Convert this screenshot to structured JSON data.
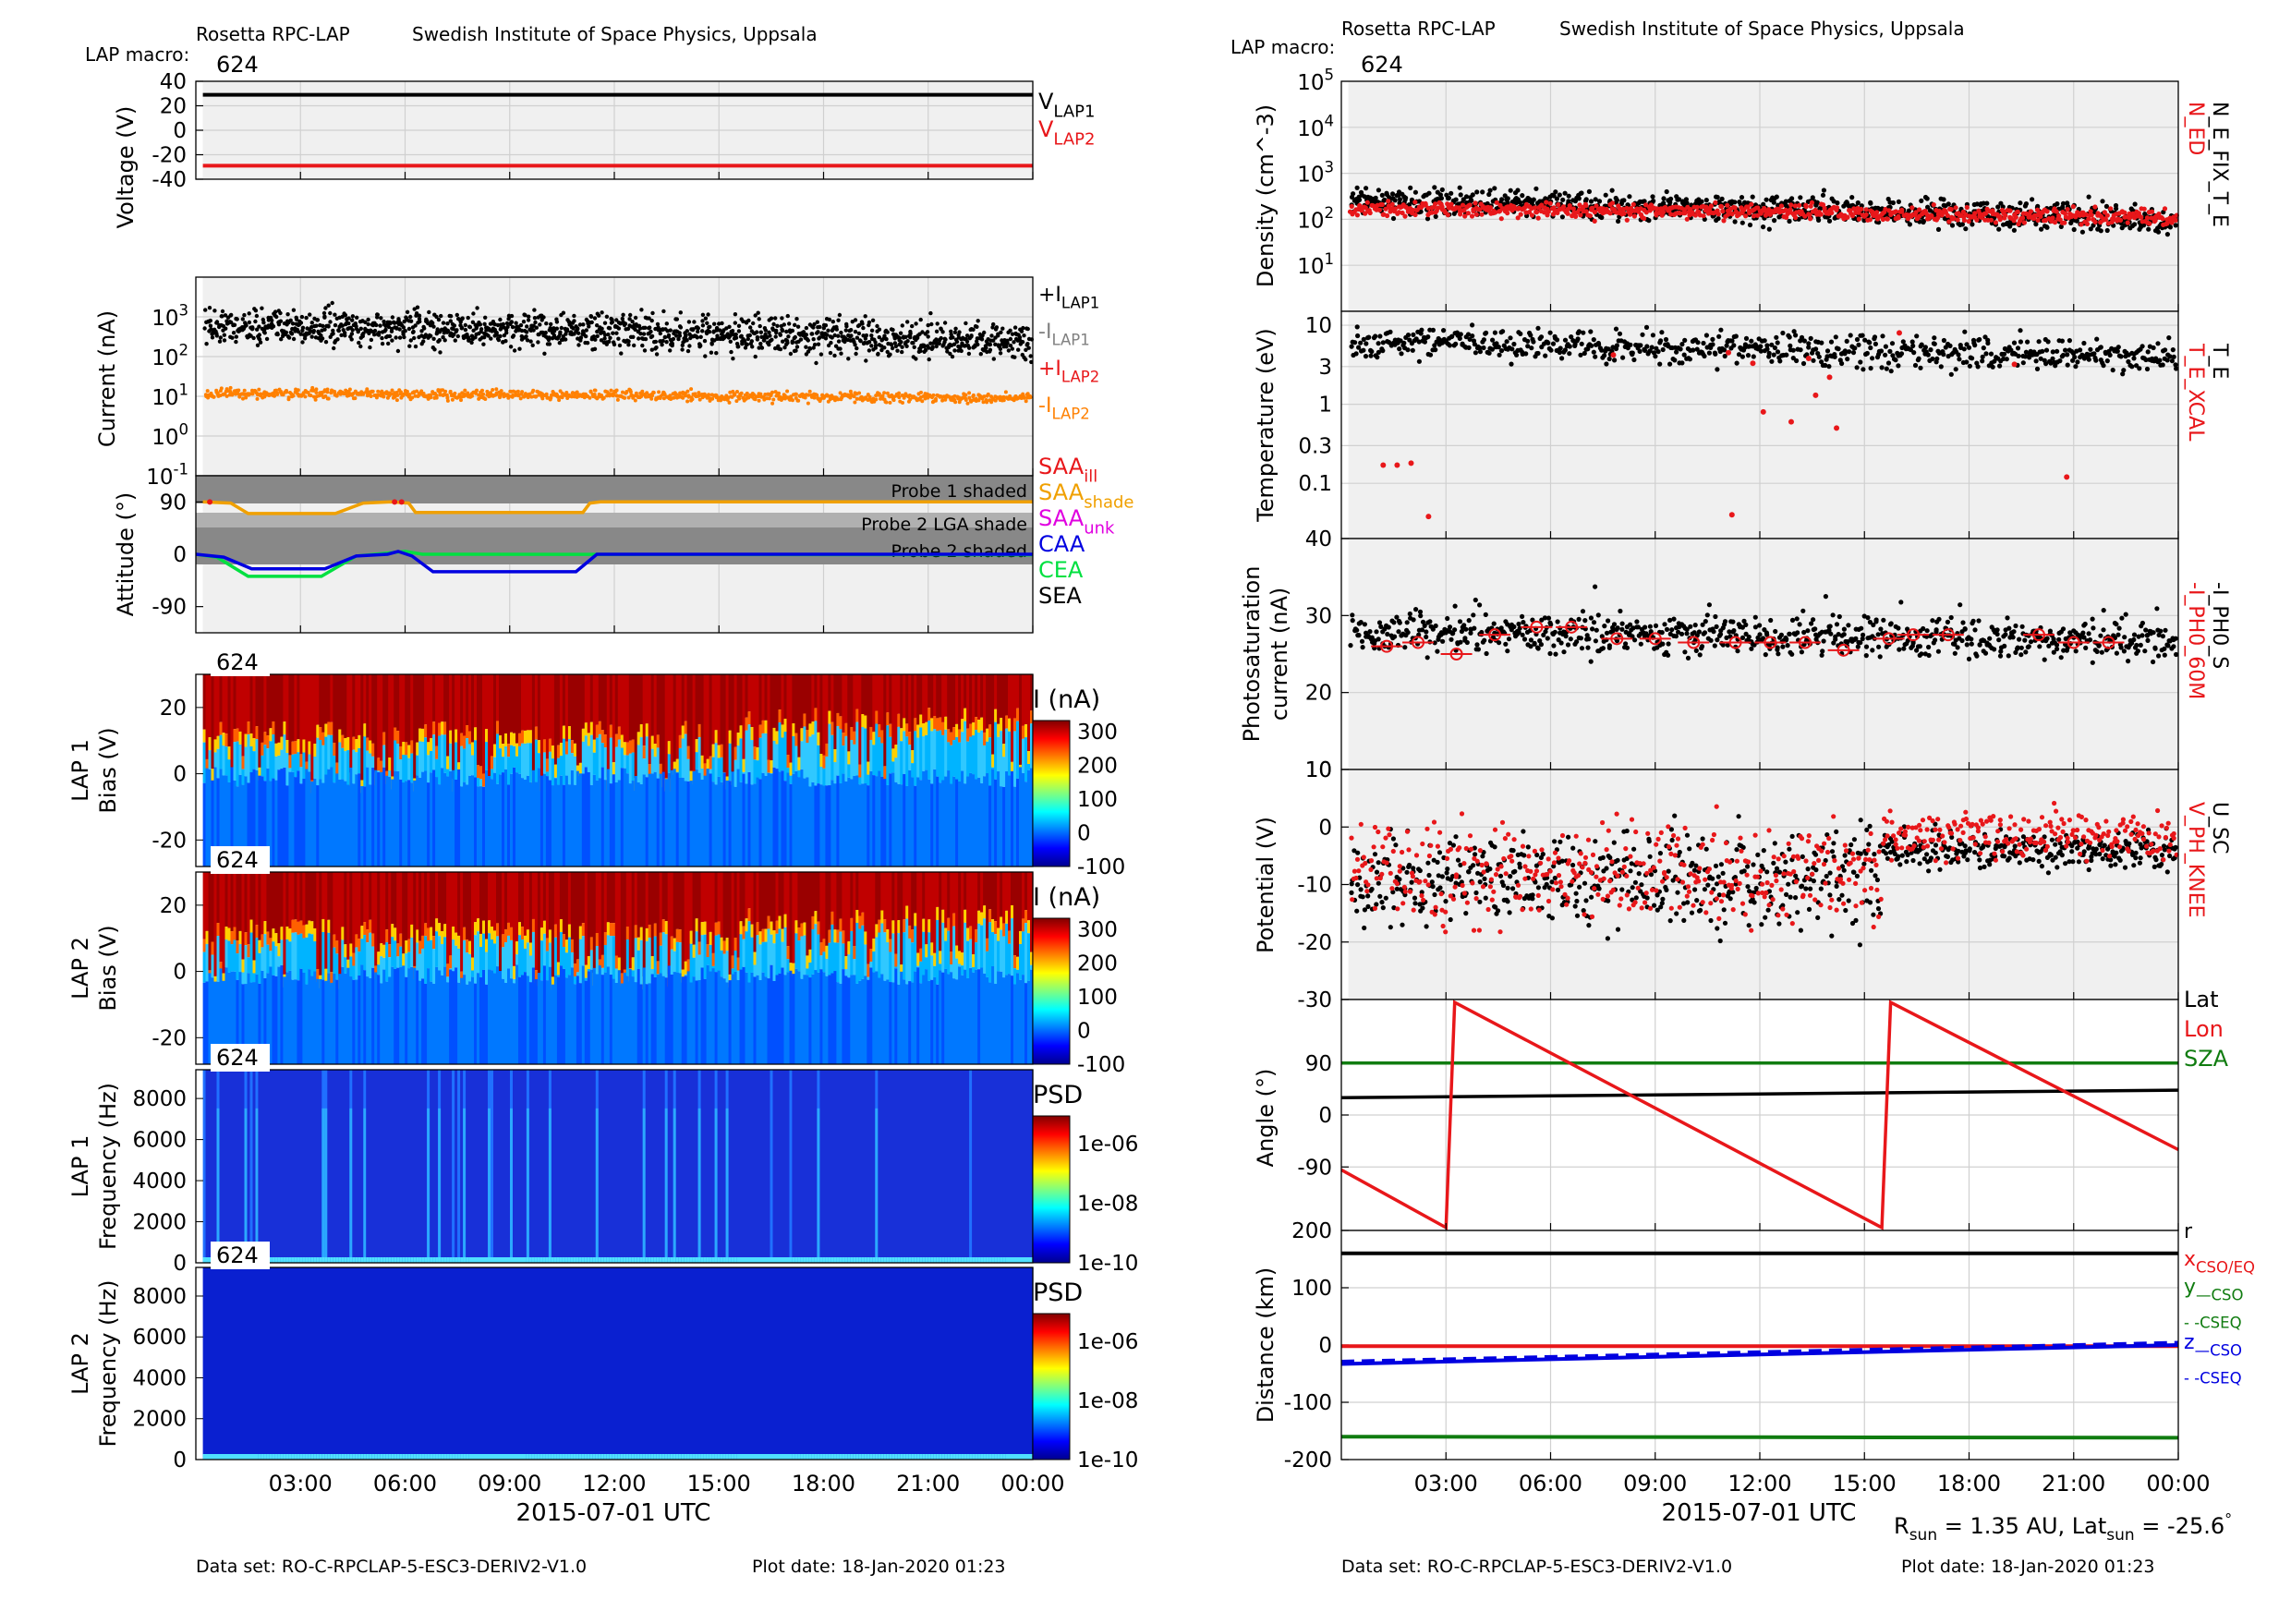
{
  "header": {
    "instrument": "Rosetta RPC-LAP",
    "institute": "Swedish Institute of Space Physics, Uppsala",
    "macro_label": "LAP macro:",
    "macro_value": "624"
  },
  "footer": {
    "dataset": "Data set: RO-C-RPCLAP-5-ESC3-DERIV2-V1.0",
    "plot_date": "Plot date: 18-Jan-2020 01:23",
    "sun_info_parts": [
      "R",
      "sun",
      " = 1.35 AU, Lat",
      "sun",
      " = -25.6",
      "°"
    ]
  },
  "time_axis": {
    "label": "2015-07-01 UTC",
    "ticks": [
      "03:00",
      "06:00",
      "09:00",
      "12:00",
      "15:00",
      "18:00",
      "21:00",
      "00:00"
    ],
    "range_hours": [
      0,
      24
    ]
  },
  "colors": {
    "panel_bg": "#f0f0f0",
    "black": "#000000",
    "red": "#e8171a",
    "orange": "#ff8000",
    "grey": "#808080",
    "gold": "#f0a000",
    "magenta": "#e000e0",
    "blue": "#0000e0",
    "green": "#00e040",
    "dark_green": "#107c10",
    "shade_dark": "#555555",
    "shade_mid": "#888888"
  },
  "chart_data": [
    {
      "id": "voltage",
      "type": "line",
      "ylabel": "Voltage (V)",
      "yticks": [
        40,
        20,
        0,
        -20,
        -40
      ],
      "ylim": [
        -40,
        40
      ],
      "series": [
        {
          "name": "V_LAP1",
          "values": [
            29,
            29
          ]
        },
        {
          "name": "V_LAP2",
          "values": [
            -29,
            -29
          ]
        }
      ],
      "legend": [
        {
          "main": "V",
          "sub": "LAP1",
          "color": "#000000"
        },
        {
          "main": "V",
          "sub": "LAP2",
          "color": "#e8171a"
        }
      ]
    },
    {
      "id": "current",
      "type": "scatter",
      "yscale": "log",
      "ylabel": "Current (nA)",
      "ylim": [
        0.1,
        10000
      ],
      "yticks": [
        {
          "m": "10",
          "e": "3"
        },
        {
          "m": "10",
          "e": "2"
        },
        {
          "m": "10",
          "e": "1"
        },
        {
          "m": "10",
          "e": "0"
        },
        {
          "m": "10",
          "e": "-1"
        }
      ],
      "series": [
        {
          "name": "+I_LAP1",
          "level_start": 600,
          "level_end": 220
        },
        {
          "name": "-I_LAP2",
          "level_start": 12,
          "level_end": 9
        }
      ],
      "legend": [
        {
          "main": "+I",
          "sub": "LAP1",
          "color": "#000000"
        },
        {
          "main": "-I",
          "sub": "LAP1",
          "color": "#808080"
        },
        {
          "main": "+I",
          "sub": "LAP2",
          "color": "#e8171a"
        },
        {
          "main": "-I",
          "sub": "LAP2",
          "color": "#ff8000"
        }
      ]
    },
    {
      "id": "attitude",
      "type": "line",
      "ylabel": "Attitude (°)",
      "yticks": [
        90,
        0,
        -90
      ],
      "ylim": [
        -135,
        135
      ],
      "shade_labels": [
        "Probe 1 shaded",
        "Probe 2 LGA shade",
        "Probe 2 shaded"
      ],
      "series": [
        {
          "name": "SAA",
          "points": [
            [
              0.2,
              90
            ],
            [
              1.0,
              88
            ],
            [
              1.5,
              70
            ],
            [
              4.0,
              70
            ],
            [
              4.8,
              88
            ],
            [
              5.6,
              90
            ],
            [
              6.1,
              88
            ],
            [
              6.3,
              72
            ],
            [
              11.1,
              72
            ],
            [
              11.3,
              88
            ],
            [
              11.6,
              90
            ],
            [
              24,
              90
            ]
          ]
        },
        {
          "name": "CAA",
          "points": [
            [
              0,
              0
            ],
            [
              0.8,
              -5
            ],
            [
              1.6,
              -25
            ],
            [
              3.7,
              -25
            ],
            [
              4.6,
              -3
            ],
            [
              5.5,
              0
            ],
            [
              5.8,
              5
            ],
            [
              6.2,
              -3
            ],
            [
              6.8,
              -30
            ],
            [
              10.9,
              -30
            ],
            [
              11.5,
              0
            ],
            [
              24,
              0
            ]
          ]
        },
        {
          "name": "CEA",
          "points": [
            [
              0,
              0
            ],
            [
              0.6,
              -5
            ],
            [
              1.5,
              -38
            ],
            [
              3.6,
              -38
            ],
            [
              4.6,
              -3
            ],
            [
              6.0,
              5
            ],
            [
              6.5,
              0
            ],
            [
              24,
              -1
            ]
          ]
        }
      ],
      "legend": [
        {
          "main": "SAA",
          "sub": "ill",
          "color": "#e8171a"
        },
        {
          "main": "SAA",
          "sub": "shade",
          "color": "#f0a000"
        },
        {
          "main": "SAA",
          "sub": "unk",
          "color": "#e000e0"
        },
        {
          "main": "CAA",
          "sub": "",
          "color": "#0000e0"
        },
        {
          "main": "CEA",
          "sub": "",
          "color": "#00e040"
        },
        {
          "main": "SEA",
          "sub": "",
          "color": "#000000"
        }
      ]
    },
    {
      "id": "lap1_sweep",
      "type": "heatmap",
      "ylabel": [
        "LAP 1",
        "Bias (V)"
      ],
      "yticks": [
        20,
        0,
        -20
      ],
      "ylim": [
        -28,
        30
      ],
      "macro": "624",
      "colorbar": {
        "title": "I (nA)",
        "ticks": [
          "300",
          "200",
          "100",
          "0",
          "-100"
        ],
        "range": [
          -100,
          350
        ]
      }
    },
    {
      "id": "lap2_sweep",
      "type": "heatmap",
      "ylabel": [
        "LAP 2",
        "Bias (V)"
      ],
      "yticks": [
        20,
        0,
        -20
      ],
      "ylim": [
        -28,
        30
      ],
      "macro": "624",
      "colorbar": {
        "title": "I (nA)",
        "ticks": [
          "300",
          "200",
          "100",
          "0",
          "-100"
        ],
        "range": [
          -100,
          350
        ]
      }
    },
    {
      "id": "lap1_psd",
      "type": "heatmap",
      "ylabel": [
        "LAP 1",
        "Frequency (Hz)"
      ],
      "yticks": [
        8000,
        6000,
        4000,
        2000,
        0
      ],
      "ylim": [
        0,
        9400
      ],
      "macro": "624",
      "colorbar": {
        "title": "PSD",
        "ticks": [
          "1e-06",
          "1e-08",
          "1e-10"
        ]
      }
    },
    {
      "id": "lap2_psd",
      "type": "heatmap",
      "ylabel": [
        "LAP 2",
        "Frequency (Hz)"
      ],
      "yticks": [
        8000,
        6000,
        4000,
        2000,
        0
      ],
      "ylim": [
        0,
        9400
      ],
      "macro": "624",
      "colorbar": {
        "title": "PSD",
        "ticks": [
          "1e-06",
          "1e-08",
          "1e-10"
        ]
      }
    },
    {
      "id": "density",
      "type": "scatter",
      "yscale": "log",
      "ylabel": "Density (cm^-3)",
      "ylim": [
        1,
        100000
      ],
      "yticks": [
        {
          "m": "10",
          "e": "5"
        },
        {
          "m": "10",
          "e": "4"
        },
        {
          "m": "10",
          "e": "3"
        },
        {
          "m": "10",
          "e": "2"
        },
        {
          "m": "10",
          "e": "1"
        }
      ],
      "series": [
        {
          "name": "N_E_FIX_T_E",
          "level_start": 250,
          "level_end": 90
        },
        {
          "name": "N_ED",
          "level_start": 180,
          "level_end": 110
        }
      ],
      "right_labels": [
        {
          "text": "N_ED",
          "color": "#e8171a"
        },
        {
          "text": "N_E_FIX_T_E",
          "color": "#000000"
        }
      ]
    },
    {
      "id": "temperature",
      "type": "scatter",
      "yscale": "log",
      "ylabel": "Temperature (eV)",
      "ylim": [
        0.02,
        15
      ],
      "yticks": [
        "10",
        "3",
        "1",
        "0.3",
        "0.1"
      ],
      "ytick_values": [
        10,
        3,
        1,
        0.3,
        0.1
      ],
      "series": [
        {
          "name": "T_E",
          "level_start": 6,
          "level_end": 4
        },
        {
          "name": "T_E_XCAL",
          "points": [
            [
              1.2,
              0.17
            ],
            [
              1.6,
              0.17
            ],
            [
              2.0,
              0.18
            ],
            [
              2.5,
              0.038
            ],
            [
              7.8,
              4.2
            ],
            [
              11.1,
              4.5
            ],
            [
              11.2,
              0.04
            ],
            [
              11.8,
              3.3
            ],
            [
              12.1,
              0.8
            ],
            [
              12.9,
              0.6
            ],
            [
              13.4,
              3.8
            ],
            [
              13.6,
              1.3
            ],
            [
              14.0,
              2.2
            ],
            [
              14.2,
              0.5
            ],
            [
              16.0,
              8
            ],
            [
              19.3,
              3.2
            ],
            [
              20.8,
              0.12
            ]
          ]
        }
      ],
      "right_labels": [
        {
          "text": "T_E_XCAL",
          "color": "#e8171a"
        },
        {
          "text": "T_E",
          "color": "#000000"
        }
      ]
    },
    {
      "id": "photosaturation",
      "type": "scatter",
      "ylabel": [
        "Photosaturation",
        "current (nA)"
      ],
      "yticks": [
        40,
        30,
        20,
        10
      ],
      "ylim": [
        10,
        40
      ],
      "series": [
        {
          "name": "-I_PH0_S",
          "level_start": 28,
          "level_end": 26.5
        },
        {
          "name": "-I_PH0_60M",
          "points": [
            [
              1.3,
              26
            ],
            [
              2.2,
              26.5
            ],
            [
              3.3,
              25
            ],
            [
              4.4,
              27.5
            ],
            [
              5.6,
              28.5
            ],
            [
              6.6,
              28.5
            ],
            [
              7.9,
              27
            ],
            [
              9.0,
              27
            ],
            [
              10.1,
              26.5
            ],
            [
              11.3,
              26.5
            ],
            [
              12.3,
              26.5
            ],
            [
              13.3,
              26.5
            ],
            [
              14.4,
              25.5
            ],
            [
              15.7,
              27
            ],
            [
              16.4,
              27.5
            ],
            [
              17.4,
              27.5
            ],
            [
              20.0,
              27.5
            ],
            [
              21.0,
              26.5
            ],
            [
              22.0,
              26.5
            ]
          ]
        }
      ],
      "right_labels": [
        {
          "text": "-I_PH0_60M",
          "color": "#e8171a"
        },
        {
          "text": "-I_PH0_S",
          "color": "#000000"
        }
      ]
    },
    {
      "id": "potential",
      "type": "scatter",
      "ylabel": "Potential (V)",
      "yticks": [
        10,
        0,
        -10,
        -20,
        -30
      ],
      "ylim": [
        -30,
        10
      ],
      "series": [
        {
          "name": "U_SC",
          "level_start": -9,
          "level_end": -3
        },
        {
          "name": "V_PH_KNEE",
          "level_start": -8,
          "level_end": -1
        }
      ],
      "right_labels": [
        {
          "text": "V_PH_KNEE",
          "color": "#e8171a"
        },
        {
          "text": "U_SC",
          "color": "#000000"
        }
      ]
    },
    {
      "id": "angle",
      "type": "line",
      "ylabel": "Angle (°)",
      "yticks": [
        90,
        0,
        -90
      ],
      "ylim": [
        -200,
        200
      ],
      "series": [
        {
          "name": "Lat",
          "points": [
            [
              0,
              30
            ],
            [
              24,
              43
            ]
          ]
        },
        {
          "name": "Lon",
          "points": [
            [
              0,
              -95
            ],
            [
              3.0,
              -195
            ],
            [
              3.25,
              195
            ],
            [
              15.5,
              -195
            ],
            [
              15.75,
              195
            ],
            [
              24,
              -60
            ]
          ]
        },
        {
          "name": "SZA",
          "points": [
            [
              0,
              90
            ],
            [
              24,
              90
            ]
          ]
        }
      ],
      "legend": [
        {
          "main": "Lat",
          "sub": "",
          "color": "#000000"
        },
        {
          "main": "Lon",
          "sub": "",
          "color": "#e8171a"
        },
        {
          "main": "SZA",
          "sub": "",
          "color": "#107c10"
        }
      ]
    },
    {
      "id": "distance",
      "type": "line",
      "ylabel": "Distance (km)",
      "yticks": [
        200,
        100,
        0,
        -100,
        -200
      ],
      "ylim": [
        -200,
        200
      ],
      "series": [
        {
          "name": "r",
          "points": [
            [
              0,
              160
            ],
            [
              24,
              160
            ]
          ]
        },
        {
          "name": "x_CSO",
          "points": [
            [
              0,
              -2
            ],
            [
              24,
              -2
            ]
          ]
        },
        {
          "name": "y_CSO",
          "points": [
            [
              0,
              -160
            ],
            [
              24,
              -162
            ]
          ]
        },
        {
          "name": "z_CSO",
          "points": [
            [
              0,
              -33
            ],
            [
              24,
              0
            ]
          ]
        }
      ],
      "legend": [
        {
          "main": "r",
          "sub": "",
          "color": "#000000"
        },
        {
          "main": "x",
          "sub": "CSO/EQ",
          "color": "#e8171a"
        },
        {
          "main": "y",
          "sub": "—CSO",
          "color": "#107c10"
        },
        {
          "main": "",
          "sub": "- -CSEQ",
          "color": "#107c10"
        },
        {
          "main": "z",
          "sub": "—CSO",
          "color": "#0000e0"
        },
        {
          "main": "",
          "sub": "- -CSEQ",
          "color": "#0000e0"
        }
      ]
    }
  ]
}
